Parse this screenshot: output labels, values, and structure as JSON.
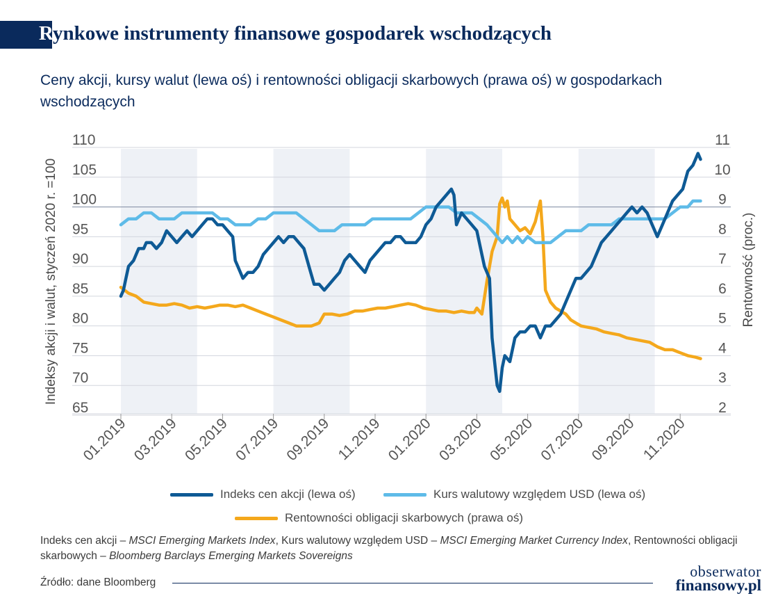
{
  "title": {
    "first_letter": "R",
    "rest": "ynkowe instrumenty finansowe gospodarek wschodzących"
  },
  "subtitle": "Ceny akcji, kursy walut (lewa oś) i rentowności obligacji skarbowych (prawa oś) w gospodarkach wschodzących",
  "colors": {
    "stock": "#0e5a95",
    "currency": "#5ebbe8",
    "yield": "#f4a81c",
    "band": "#eef1f6",
    "brand": "#0a2a5c"
  },
  "chart_data": {
    "type": "line",
    "title": "Ceny akcji, kursy walut (lewa oś) i rentowności obligacji skarbowych (prawa oś) w gospodarkach wschodzących",
    "ylabel": "Indeksy akcji i walut, styczeń 2020 r. =100",
    "y2label": "Rentowność (proc.)",
    "ylim": [
      65,
      110
    ],
    "y2lim": [
      2,
      11
    ],
    "yticks": [
      "110",
      "105",
      "100",
      "95",
      "90",
      "85",
      "80",
      "75",
      "70",
      "65"
    ],
    "y2ticks": [
      "11",
      "10",
      "9",
      "8",
      "7",
      "6",
      "5",
      "4",
      "3",
      "2"
    ],
    "xticks": [
      "01.2019",
      "03.2019",
      "05.2019",
      "07.2019",
      "09.2019",
      "11.2019",
      "01.2020",
      "03.2020",
      "05.2020",
      "07.2020",
      "09.2020",
      "11.2020"
    ],
    "x_range_months": [
      0,
      23
    ],
    "shaded_bands_months": [
      [
        0,
        3
      ],
      [
        6,
        9
      ],
      [
        12,
        15
      ],
      [
        18,
        21
      ]
    ],
    "series": [
      {
        "name": "Indeks cen akcji (lewa oś)",
        "axis": "left",
        "color_key": "stock",
        "points": [
          [
            0,
            85
          ],
          [
            0.1,
            86
          ],
          [
            0.2,
            88
          ],
          [
            0.3,
            90
          ],
          [
            0.5,
            91
          ],
          [
            0.7,
            93
          ],
          [
            0.9,
            93
          ],
          [
            1.0,
            94
          ],
          [
            1.2,
            94
          ],
          [
            1.4,
            93
          ],
          [
            1.6,
            94
          ],
          [
            1.8,
            96
          ],
          [
            2.0,
            95
          ],
          [
            2.2,
            94
          ],
          [
            2.4,
            95
          ],
          [
            2.6,
            96
          ],
          [
            2.8,
            95
          ],
          [
            3.0,
            96
          ],
          [
            3.2,
            97
          ],
          [
            3.4,
            98
          ],
          [
            3.6,
            98
          ],
          [
            3.8,
            97
          ],
          [
            4.0,
            97
          ],
          [
            4.2,
            96
          ],
          [
            4.4,
            95
          ],
          [
            4.5,
            91
          ],
          [
            4.6,
            90
          ],
          [
            4.8,
            88
          ],
          [
            5.0,
            89
          ],
          [
            5.2,
            89
          ],
          [
            5.4,
            90
          ],
          [
            5.6,
            92
          ],
          [
            5.8,
            93
          ],
          [
            6.0,
            94
          ],
          [
            6.2,
            95
          ],
          [
            6.4,
            94
          ],
          [
            6.6,
            95
          ],
          [
            6.8,
            95
          ],
          [
            7.0,
            94
          ],
          [
            7.2,
            93
          ],
          [
            7.4,
            90
          ],
          [
            7.6,
            87
          ],
          [
            7.8,
            87
          ],
          [
            8.0,
            86
          ],
          [
            8.2,
            87
          ],
          [
            8.4,
            88
          ],
          [
            8.6,
            89
          ],
          [
            8.8,
            91
          ],
          [
            9.0,
            92
          ],
          [
            9.2,
            91
          ],
          [
            9.4,
            90
          ],
          [
            9.6,
            89
          ],
          [
            9.8,
            91
          ],
          [
            10.0,
            92
          ],
          [
            10.2,
            93
          ],
          [
            10.4,
            94
          ],
          [
            10.6,
            94
          ],
          [
            10.8,
            95
          ],
          [
            11.0,
            95
          ],
          [
            11.2,
            94
          ],
          [
            11.4,
            94
          ],
          [
            11.6,
            94
          ],
          [
            11.8,
            95
          ],
          [
            12.0,
            97
          ],
          [
            12.2,
            98
          ],
          [
            12.4,
            100
          ],
          [
            12.6,
            101
          ],
          [
            12.8,
            102
          ],
          [
            13.0,
            103
          ],
          [
            13.1,
            102
          ],
          [
            13.2,
            97
          ],
          [
            13.4,
            99
          ],
          [
            13.6,
            98
          ],
          [
            13.8,
            97
          ],
          [
            14.0,
            96
          ],
          [
            14.2,
            92
          ],
          [
            14.3,
            90
          ],
          [
            14.5,
            88
          ],
          [
            14.6,
            78
          ],
          [
            14.7,
            74
          ],
          [
            14.8,
            70
          ],
          [
            14.9,
            69
          ],
          [
            15.0,
            73
          ],
          [
            15.1,
            75
          ],
          [
            15.3,
            74
          ],
          [
            15.5,
            78
          ],
          [
            15.7,
            79
          ],
          [
            15.9,
            79
          ],
          [
            16.1,
            80
          ],
          [
            16.3,
            80
          ],
          [
            16.5,
            78
          ],
          [
            16.7,
            80
          ],
          [
            16.9,
            80
          ],
          [
            17.1,
            81
          ],
          [
            17.3,
            82
          ],
          [
            17.5,
            84
          ],
          [
            17.7,
            86
          ],
          [
            17.9,
            88
          ],
          [
            18.1,
            88
          ],
          [
            18.3,
            89
          ],
          [
            18.5,
            90
          ],
          [
            18.7,
            92
          ],
          [
            18.9,
            94
          ],
          [
            19.1,
            95
          ],
          [
            19.3,
            96
          ],
          [
            19.5,
            97
          ],
          [
            19.7,
            98
          ],
          [
            19.9,
            99
          ],
          [
            20.1,
            100
          ],
          [
            20.3,
            99
          ],
          [
            20.5,
            100
          ],
          [
            20.7,
            99
          ],
          [
            20.9,
            97
          ],
          [
            21.1,
            95
          ],
          [
            21.3,
            97
          ],
          [
            21.5,
            99
          ],
          [
            21.7,
            101
          ],
          [
            21.9,
            102
          ],
          [
            22.1,
            103
          ],
          [
            22.3,
            106
          ],
          [
            22.5,
            107
          ],
          [
            22.6,
            108
          ],
          [
            22.7,
            109
          ],
          [
            22.8,
            108
          ]
        ]
      },
      {
        "name": "Kurs walutowy względem USD (lewa oś)",
        "axis": "left",
        "color_key": "currency",
        "points": [
          [
            0,
            97
          ],
          [
            0.3,
            98
          ],
          [
            0.6,
            98
          ],
          [
            0.9,
            99
          ],
          [
            1.2,
            99
          ],
          [
            1.5,
            98
          ],
          [
            1.8,
            98
          ],
          [
            2.1,
            98
          ],
          [
            2.4,
            99
          ],
          [
            2.7,
            99
          ],
          [
            3.0,
            99
          ],
          [
            3.3,
            99
          ],
          [
            3.6,
            99
          ],
          [
            3.9,
            98
          ],
          [
            4.2,
            98
          ],
          [
            4.5,
            97
          ],
          [
            4.8,
            97
          ],
          [
            5.1,
            97
          ],
          [
            5.4,
            98
          ],
          [
            5.7,
            98
          ],
          [
            6.0,
            99
          ],
          [
            6.3,
            99
          ],
          [
            6.6,
            99
          ],
          [
            6.9,
            99
          ],
          [
            7.2,
            98
          ],
          [
            7.5,
            97
          ],
          [
            7.8,
            96
          ],
          [
            8.1,
            96
          ],
          [
            8.4,
            96
          ],
          [
            8.7,
            97
          ],
          [
            9.0,
            97
          ],
          [
            9.3,
            97
          ],
          [
            9.6,
            97
          ],
          [
            9.9,
            98
          ],
          [
            10.2,
            98
          ],
          [
            10.5,
            98
          ],
          [
            10.8,
            98
          ],
          [
            11.1,
            98
          ],
          [
            11.4,
            98
          ],
          [
            11.7,
            99
          ],
          [
            12.0,
            100
          ],
          [
            12.3,
            100
          ],
          [
            12.6,
            100
          ],
          [
            12.9,
            100
          ],
          [
            13.2,
            99
          ],
          [
            13.5,
            99
          ],
          [
            13.8,
            99
          ],
          [
            14.1,
            98
          ],
          [
            14.4,
            97
          ],
          [
            14.6,
            96
          ],
          [
            14.8,
            95
          ],
          [
            15.0,
            94
          ],
          [
            15.2,
            95
          ],
          [
            15.4,
            94
          ],
          [
            15.6,
            95
          ],
          [
            15.8,
            94
          ],
          [
            16.0,
            95
          ],
          [
            16.3,
            94
          ],
          [
            16.6,
            94
          ],
          [
            16.9,
            94
          ],
          [
            17.2,
            95
          ],
          [
            17.5,
            96
          ],
          [
            17.8,
            96
          ],
          [
            18.1,
            96
          ],
          [
            18.4,
            97
          ],
          [
            18.7,
            97
          ],
          [
            19.0,
            97
          ],
          [
            19.3,
            97
          ],
          [
            19.6,
            98
          ],
          [
            19.9,
            98
          ],
          [
            20.2,
            98
          ],
          [
            20.5,
            98
          ],
          [
            20.8,
            98
          ],
          [
            21.1,
            98
          ],
          [
            21.4,
            98
          ],
          [
            21.7,
            99
          ],
          [
            22.0,
            100
          ],
          [
            22.3,
            100
          ],
          [
            22.5,
            101
          ],
          [
            22.8,
            101
          ]
        ]
      },
      {
        "name": "Rentowności obligacji skarbowych (prawa oś)",
        "axis": "right",
        "color_key": "yield",
        "points": [
          [
            0,
            6.3
          ],
          [
            0.3,
            6.1
          ],
          [
            0.6,
            6.0
          ],
          [
            0.9,
            5.8
          ],
          [
            1.2,
            5.75
          ],
          [
            1.5,
            5.7
          ],
          [
            1.8,
            5.7
          ],
          [
            2.1,
            5.75
          ],
          [
            2.4,
            5.7
          ],
          [
            2.7,
            5.6
          ],
          [
            3.0,
            5.65
          ],
          [
            3.3,
            5.6
          ],
          [
            3.6,
            5.65
          ],
          [
            3.9,
            5.7
          ],
          [
            4.2,
            5.7
          ],
          [
            4.5,
            5.65
          ],
          [
            4.8,
            5.7
          ],
          [
            5.1,
            5.6
          ],
          [
            5.4,
            5.5
          ],
          [
            5.7,
            5.4
          ],
          [
            6.0,
            5.3
          ],
          [
            6.3,
            5.2
          ],
          [
            6.6,
            5.1
          ],
          [
            6.9,
            5.0
          ],
          [
            7.2,
            5.0
          ],
          [
            7.5,
            5.0
          ],
          [
            7.8,
            5.1
          ],
          [
            8.0,
            5.4
          ],
          [
            8.3,
            5.4
          ],
          [
            8.6,
            5.35
          ],
          [
            8.9,
            5.4
          ],
          [
            9.2,
            5.5
          ],
          [
            9.5,
            5.5
          ],
          [
            9.8,
            5.55
          ],
          [
            10.1,
            5.6
          ],
          [
            10.4,
            5.6
          ],
          [
            10.7,
            5.65
          ],
          [
            11.0,
            5.7
          ],
          [
            11.3,
            5.75
          ],
          [
            11.6,
            5.7
          ],
          [
            11.9,
            5.6
          ],
          [
            12.2,
            5.55
          ],
          [
            12.5,
            5.5
          ],
          [
            12.8,
            5.5
          ],
          [
            13.1,
            5.45
          ],
          [
            13.4,
            5.5
          ],
          [
            13.7,
            5.45
          ],
          [
            13.9,
            5.45
          ],
          [
            14.0,
            5.6
          ],
          [
            14.2,
            5.4
          ],
          [
            14.4,
            6.5
          ],
          [
            14.6,
            7.5
          ],
          [
            14.8,
            8.0
          ],
          [
            14.9,
            9.1
          ],
          [
            15.0,
            9.3
          ],
          [
            15.1,
            9.0
          ],
          [
            15.2,
            9.2
          ],
          [
            15.3,
            8.6
          ],
          [
            15.5,
            8.4
          ],
          [
            15.7,
            8.2
          ],
          [
            15.9,
            8.3
          ],
          [
            16.1,
            8.1
          ],
          [
            16.3,
            8.5
          ],
          [
            16.5,
            9.2
          ],
          [
            16.6,
            8.0
          ],
          [
            16.7,
            6.2
          ],
          [
            16.9,
            5.8
          ],
          [
            17.1,
            5.6
          ],
          [
            17.3,
            5.5
          ],
          [
            17.5,
            5.4
          ],
          [
            17.7,
            5.2
          ],
          [
            17.9,
            5.1
          ],
          [
            18.1,
            5.0
          ],
          [
            18.4,
            4.95
          ],
          [
            18.7,
            4.9
          ],
          [
            19.0,
            4.8
          ],
          [
            19.3,
            4.75
          ],
          [
            19.6,
            4.7
          ],
          [
            19.9,
            4.6
          ],
          [
            20.2,
            4.55
          ],
          [
            20.5,
            4.5
          ],
          [
            20.8,
            4.45
          ],
          [
            21.1,
            4.3
          ],
          [
            21.4,
            4.2
          ],
          [
            21.7,
            4.2
          ],
          [
            22.0,
            4.1
          ],
          [
            22.3,
            4.0
          ],
          [
            22.6,
            3.95
          ],
          [
            22.8,
            3.9
          ]
        ]
      }
    ]
  },
  "legend": {
    "stock": "Indeks cen akcji (lewa oś)",
    "currency": "Kurs walutowy względem USD (lewa oś)",
    "yield": "Rentowności obligacji skarbowych (prawa oś)"
  },
  "note": {
    "p1": "Indeks cen akcji – ",
    "i1": "MSCI Emerging Markets Index",
    "p2": ", Kurs walutowy względem USD – ",
    "i2": "MSCI Emerging Market Currency Index",
    "p3": ",  Rentowności obligacji skarbowych – ",
    "i3": "Bloomberg Barclays Emerging Markets Sovereigns"
  },
  "source": "Źródło: dane Bloomberg",
  "logo": {
    "line1": "obserwator",
    "line2": "finansowy.pl"
  }
}
